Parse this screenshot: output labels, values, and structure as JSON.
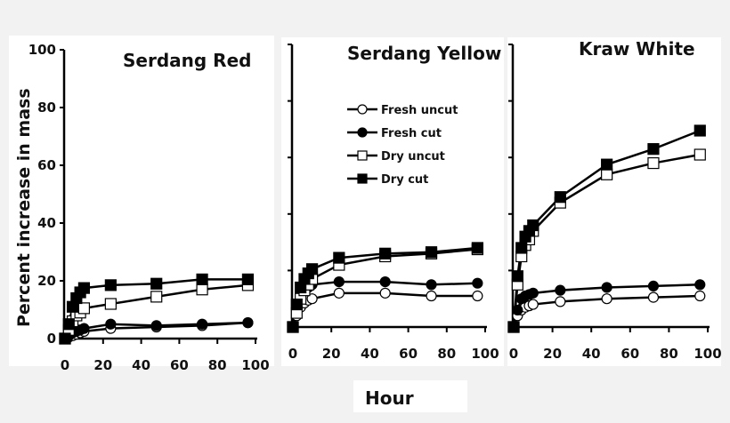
{
  "figure": {
    "xlabel": "Hour",
    "ylabel": "Percent increase in mass",
    "legend": [
      "Fresh uncut",
      "Fresh cut",
      "Dry uncut",
      "Dry cut"
    ]
  },
  "chart_data": [
    {
      "type": "line",
      "title": "Serdang Red",
      "xlabel": "Hour",
      "ylabel": "Percent increase in mass",
      "xlim": [
        0,
        100
      ],
      "ylim": [
        0,
        100
      ],
      "xticks": [
        0,
        20,
        40,
        60,
        80,
        100
      ],
      "yticks": [
        0,
        20,
        40,
        60,
        80,
        100
      ],
      "x": [
        0,
        2,
        4,
        6,
        8,
        10,
        24,
        48,
        72,
        96
      ],
      "series": [
        {
          "name": "Fresh uncut",
          "marker": "open-circle",
          "values": [
            0,
            0.5,
            1,
            1.5,
            2,
            2.5,
            3.5,
            4,
            4.5,
            5.5
          ]
        },
        {
          "name": "Fresh cut",
          "marker": "filled-circle",
          "values": [
            0,
            1,
            2,
            2.5,
            3,
            3.5,
            5,
            4.5,
            5,
            5.5
          ]
        },
        {
          "name": "Dry uncut",
          "marker": "open-square",
          "values": [
            0,
            3,
            6,
            8,
            9,
            10.5,
            12,
            14.5,
            17,
            18.5
          ]
        },
        {
          "name": "Dry cut",
          "marker": "filled-square",
          "values": [
            0,
            5,
            11,
            14,
            16,
            17.5,
            18.5,
            19,
            20.5,
            20.5
          ]
        }
      ]
    },
    {
      "type": "line",
      "title": "Serdang Yellow",
      "xlabel": "Hour",
      "ylabel": "Percent increase in mass",
      "xlim": [
        0,
        100
      ],
      "ylim": [
        0,
        100
      ],
      "xticks": [
        0,
        20,
        40,
        60,
        80,
        100
      ],
      "x": [
        0,
        2,
        4,
        6,
        8,
        10,
        24,
        48,
        72,
        96
      ],
      "series": [
        {
          "name": "Fresh uncut",
          "marker": "open-circle",
          "values": [
            0,
            4,
            7,
            8.5,
            9.5,
            10,
            12,
            12,
            11,
            11
          ]
        },
        {
          "name": "Fresh cut",
          "marker": "filled-circle",
          "values": [
            0,
            7,
            11,
            13,
            14,
            15,
            16,
            16,
            15,
            15.5
          ]
        },
        {
          "name": "Dry uncut",
          "marker": "open-square",
          "values": [
            0,
            5,
            10,
            13,
            15,
            17,
            22,
            25,
            26,
            27.5
          ]
        },
        {
          "name": "Dry cut",
          "marker": "filled-square",
          "values": [
            0,
            8,
            14,
            17,
            19,
            20.5,
            24.5,
            26,
            26.5,
            28
          ]
        }
      ]
    },
    {
      "type": "line",
      "title": "Kraw White",
      "xlabel": "Hour",
      "ylabel": "Percent increase in mass",
      "xlim": [
        0,
        100
      ],
      "ylim": [
        0,
        100
      ],
      "xticks": [
        0,
        20,
        40,
        60,
        80,
        100
      ],
      "x": [
        0,
        2,
        4,
        6,
        8,
        10,
        24,
        48,
        72,
        96
      ],
      "series": [
        {
          "name": "Fresh uncut",
          "marker": "open-circle",
          "values": [
            0,
            4,
            6,
            7,
            7.5,
            8,
            9,
            10,
            10.5,
            11
          ]
        },
        {
          "name": "Fresh cut",
          "marker": "filled-circle",
          "values": [
            0,
            6,
            10,
            11,
            11.5,
            12,
            13,
            14,
            14.5,
            15
          ]
        },
        {
          "name": "Dry uncut",
          "marker": "open-square",
          "values": [
            0,
            15,
            25,
            29,
            31,
            34,
            44,
            54,
            58,
            61
          ]
        },
        {
          "name": "Dry cut",
          "marker": "filled-square",
          "values": [
            0,
            18,
            28,
            32,
            34,
            36,
            46,
            57.5,
            63,
            69.5
          ]
        }
      ]
    }
  ]
}
